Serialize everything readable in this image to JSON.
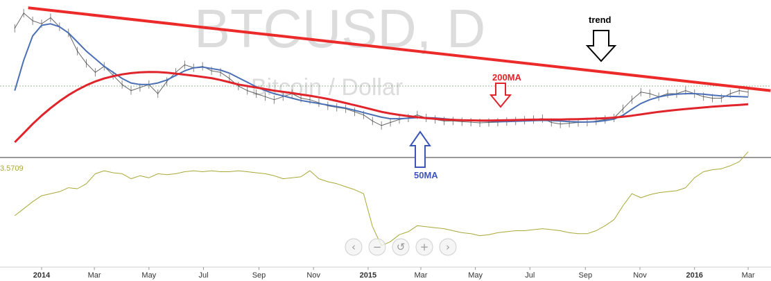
{
  "watermark": {
    "symbol": "BTCUSD, D",
    "subtitle": "Bitcoin / Dollar"
  },
  "lower_pane": {
    "value_label": "3.5709"
  },
  "annotations": {
    "trend": "trend",
    "ma200": "200MA",
    "ma50": "50MA"
  },
  "navigation": {
    "buttons": [
      {
        "name": "scroll-left",
        "glyph": "‹"
      },
      {
        "name": "zoom-out",
        "glyph": "−"
      },
      {
        "name": "reset",
        "glyph": "↺"
      },
      {
        "name": "zoom-in",
        "glyph": "+"
      },
      {
        "name": "scroll-right",
        "glyph": "›"
      }
    ]
  },
  "colors": {
    "price": "#333333",
    "ma50": "#4a6fb5",
    "ma200": "#e0242b",
    "trendline": "#ec2a2a",
    "lower": "#a8a838",
    "ann_trend": "#000000",
    "ann_ma200": "#e0242b",
    "ann_ma50": "#3c55b8"
  },
  "chart_data": {
    "type": "line",
    "x_axis": {
      "ticks": [
        {
          "label": "2014",
          "t": 0,
          "bold": true
        },
        {
          "label": "Mar",
          "t": 59
        },
        {
          "label": "May",
          "t": 120
        },
        {
          "label": "Jul",
          "t": 181
        },
        {
          "label": "Sep",
          "t": 243
        },
        {
          "label": "Nov",
          "t": 304
        },
        {
          "label": "2015",
          "t": 365,
          "bold": true
        },
        {
          "label": "Mar",
          "t": 424
        },
        {
          "label": "May",
          "t": 485
        },
        {
          "label": "Jul",
          "t": 546
        },
        {
          "label": "Sep",
          "t": 608
        },
        {
          "label": "Nov",
          "t": 669
        },
        {
          "label": "2016",
          "t": 730,
          "bold": true
        },
        {
          "label": "Mar",
          "t": 790
        }
      ]
    },
    "price_range": [
      100,
      1000
    ],
    "lower_range": [
      0,
      100
    ],
    "series": [
      {
        "key": "price",
        "x": [
          -30,
          -20,
          -10,
          0,
          10,
          20,
          30,
          40,
          50,
          60,
          70,
          80,
          90,
          100,
          110,
          120,
          130,
          140,
          150,
          160,
          170,
          180,
          190,
          200,
          210,
          220,
          230,
          240,
          250,
          260,
          270,
          280,
          290,
          300,
          310,
          320,
          330,
          340,
          350,
          360,
          370,
          380,
          390,
          400,
          410,
          420,
          430,
          440,
          450,
          460,
          470,
          480,
          490,
          500,
          510,
          520,
          530,
          540,
          550,
          560,
          570,
          580,
          590,
          600,
          610,
          620,
          630,
          640,
          650,
          660,
          670,
          680,
          690,
          700,
          710,
          720,
          730,
          740,
          750,
          760,
          770,
          780,
          790
        ],
        "y": [
          850,
          950,
          900,
          880,
          920,
          860,
          820,
          700,
          620,
          560,
          600,
          540,
          480,
          440,
          460,
          480,
          420,
          500,
          560,
          610,
          590,
          600,
          570,
          560,
          520,
          470,
          440,
          420,
          400,
          380,
          400,
          420,
          390,
          380,
          360,
          340,
          330,
          320,
          300,
          280,
          240,
          210,
          230,
          250,
          260,
          280,
          260,
          250,
          240,
          240,
          235,
          232,
          228,
          230,
          232,
          236,
          240,
          245,
          250,
          256,
          230,
          220,
          225,
          230,
          232,
          240,
          250,
          260,
          320,
          380,
          430,
          420,
          400,
          420,
          420,
          440,
          420,
          400,
          390,
          390,
          420,
          440,
          430
        ]
      },
      {
        "key": "ma50",
        "x": [
          -30,
          -20,
          -10,
          0,
          10,
          20,
          30,
          40,
          50,
          60,
          70,
          80,
          90,
          100,
          110,
          120,
          130,
          140,
          150,
          160,
          170,
          180,
          190,
          200,
          210,
          220,
          230,
          240,
          250,
          260,
          270,
          280,
          290,
          300,
          310,
          320,
          330,
          340,
          350,
          360,
          370,
          380,
          390,
          400,
          410,
          420,
          430,
          440,
          450,
          460,
          470,
          480,
          490,
          500,
          510,
          520,
          530,
          540,
          550,
          560,
          570,
          580,
          590,
          600,
          610,
          620,
          630,
          640,
          650,
          660,
          670,
          680,
          690,
          700,
          710,
          720,
          730,
          740,
          750,
          760,
          770,
          780,
          790
        ],
        "y": [
          440,
          640,
          800,
          870,
          880,
          860,
          820,
          760,
          700,
          650,
          600,
          560,
          520,
          490,
          480,
          480,
          490,
          510,
          540,
          570,
          590,
          595,
          585,
          575,
          555,
          525,
          495,
          465,
          440,
          420,
          405,
          390,
          375,
          365,
          355,
          345,
          335,
          325,
          310,
          295,
          280,
          265,
          255,
          255,
          258,
          262,
          262,
          260,
          255,
          250,
          246,
          243,
          240,
          238,
          236,
          236,
          238,
          240,
          242,
          244,
          242,
          240,
          236,
          234,
          233,
          235,
          242,
          252,
          278,
          318,
          355,
          380,
          398,
          410,
          416,
          420,
          420,
          416,
          410,
          405,
          402,
          400,
          398
        ]
      },
      {
        "key": "ma200",
        "x": [
          -30,
          -20,
          -10,
          0,
          10,
          20,
          30,
          40,
          50,
          60,
          70,
          80,
          90,
          100,
          110,
          120,
          130,
          140,
          150,
          160,
          170,
          180,
          190,
          200,
          210,
          220,
          230,
          240,
          250,
          260,
          270,
          280,
          290,
          300,
          310,
          320,
          330,
          340,
          350,
          360,
          370,
          380,
          390,
          400,
          410,
          420,
          430,
          440,
          450,
          460,
          470,
          480,
          490,
          500,
          510,
          520,
          530,
          540,
          550,
          560,
          570,
          580,
          590,
          600,
          610,
          620,
          630,
          640,
          650,
          660,
          670,
          680,
          690,
          700,
          710,
          720,
          730,
          740,
          750,
          760,
          770,
          780,
          790
        ],
        "y": [
          100,
          160,
          220,
          275,
          325,
          370,
          410,
          445,
          475,
          500,
          520,
          535,
          547,
          555,
          560,
          563,
          562,
          558,
          552,
          545,
          538,
          530,
          522,
          510,
          495,
          480,
          470,
          460,
          450,
          440,
          432,
          424,
          415,
          406,
          396,
          385,
          372,
          358,
          344,
          330,
          315,
          300,
          289,
          280,
          272,
          265,
          259,
          254,
          250,
          247,
          245,
          244,
          243,
          243,
          244,
          245,
          246,
          248,
          249,
          250,
          250,
          250,
          251,
          252,
          254,
          256,
          258,
          262,
          268,
          275,
          283,
          292,
          300,
          307,
          313,
          319,
          324,
          329,
          334,
          338,
          342,
          346,
          350
        ]
      },
      {
        "key": "trendline",
        "x": [
          -15,
          815
        ],
        "y": [
          985,
          440
        ]
      },
      {
        "key": "lower",
        "x": [
          -30,
          -20,
          -10,
          0,
          10,
          20,
          30,
          40,
          50,
          60,
          70,
          80,
          90,
          100,
          110,
          120,
          130,
          140,
          150,
          160,
          170,
          180,
          190,
          200,
          210,
          220,
          230,
          240,
          250,
          260,
          270,
          280,
          290,
          300,
          310,
          320,
          330,
          340,
          350,
          360,
          370,
          380,
          390,
          400,
          410,
          420,
          430,
          440,
          450,
          460,
          470,
          480,
          490,
          500,
          510,
          520,
          530,
          540,
          550,
          560,
          570,
          580,
          590,
          600,
          610,
          620,
          630,
          640,
          650,
          660,
          670,
          680,
          690,
          700,
          710,
          720,
          730,
          740,
          750,
          760,
          770,
          780,
          790
        ],
        "y": [
          48,
          55,
          62,
          68,
          70,
          72,
          76,
          75,
          80,
          90,
          93,
          91,
          90,
          85,
          88,
          86,
          90,
          89,
          90,
          92,
          93,
          92,
          93,
          92,
          92,
          93,
          92,
          91,
          90,
          88,
          85,
          86,
          87,
          93,
          85,
          82,
          80,
          77,
          74,
          70,
          37,
          18,
          22,
          29,
          32,
          38,
          37,
          36,
          35,
          33,
          31,
          30,
          28,
          29,
          31,
          32,
          33,
          33,
          34,
          35,
          34,
          33,
          31,
          30,
          30,
          33,
          38,
          44,
          58,
          70,
          66,
          69,
          71,
          72,
          73,
          76,
          86,
          92,
          94,
          95,
          98,
          102,
          112
        ]
      }
    ]
  }
}
